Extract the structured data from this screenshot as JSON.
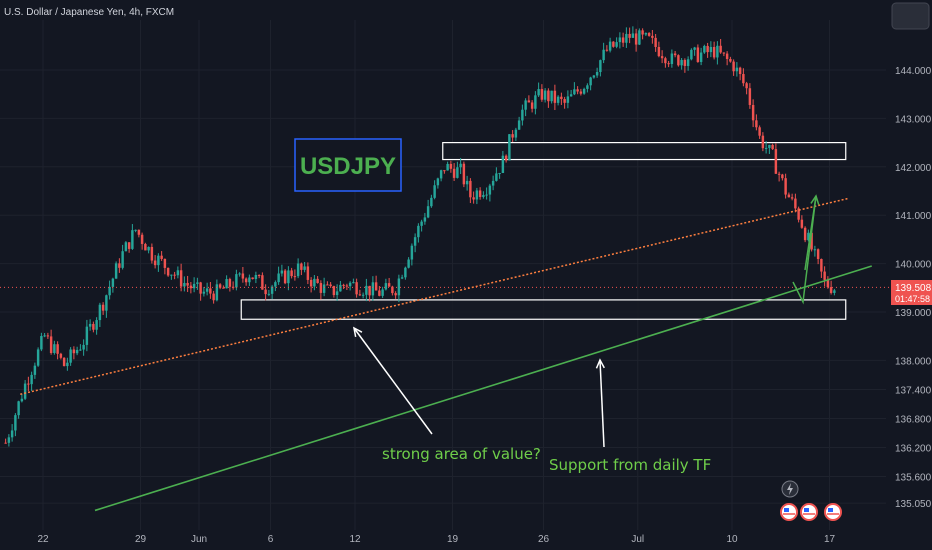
{
  "header": {
    "symbol": "U.S. Dollar / Japanese Yen, 4h, FXCM"
  },
  "colors": {
    "background": "#131722",
    "up": "#26a69a",
    "down": "#ef5350",
    "green_line": "#4caf50",
    "orange_line": "#ff7f3f",
    "text": "#b2b5be",
    "price_tag": "#ef5350"
  },
  "icons": [
    "lightning-icon",
    "us-flag-icon",
    "us-flag-icon",
    "us-flag-icon"
  ],
  "chart_data": {
    "type": "candlestick",
    "title": "USDJPY",
    "xlabel": "",
    "ylabel": "",
    "y_range": [
      134.9,
      145.3
    ],
    "y_ticks": [
      {
        "value": 144.0,
        "label": "144.000"
      },
      {
        "value": 143.0,
        "label": "143.000"
      },
      {
        "value": 142.0,
        "label": "142.000"
      },
      {
        "value": 141.0,
        "label": "141.000"
      },
      {
        "value": 140.0,
        "label": "140.000"
      },
      {
        "value": 139.0,
        "label": "139.000"
      },
      {
        "value": 138.0,
        "label": "138.000"
      },
      {
        "value": 137.4,
        "label": "137.400"
      },
      {
        "value": 136.8,
        "label": "136.800"
      },
      {
        "value": 136.2,
        "label": "136.200"
      },
      {
        "value": 135.6,
        "label": "135.600"
      },
      {
        "value": 135.05,
        "label": "135.050"
      }
    ],
    "x_ticks": [
      "22",
      "29",
      "Jun",
      "6",
      "12",
      "19",
      "26",
      "Jul",
      "10",
      "17"
    ],
    "x_tick_bar_index": [
      12,
      42,
      60,
      82,
      108,
      138,
      166,
      195,
      224,
      254
    ],
    "last_price": {
      "value": 139.508,
      "label": "139.508",
      "countdown": "01:47:58"
    },
    "price_path": [
      [
        0,
        136.3
      ],
      [
        6,
        137.5
      ],
      [
        12,
        138.5
      ],
      [
        18,
        137.9
      ],
      [
        24,
        138.4
      ],
      [
        30,
        139.2
      ],
      [
        36,
        140.2
      ],
      [
        40,
        140.7
      ],
      [
        45,
        140.2
      ],
      [
        50,
        139.9
      ],
      [
        55,
        139.6
      ],
      [
        60,
        139.4
      ],
      [
        65,
        139.4
      ],
      [
        70,
        139.6
      ],
      [
        75,
        139.8
      ],
      [
        80,
        139.5
      ],
      [
        85,
        139.7
      ],
      [
        90,
        139.9
      ],
      [
        95,
        139.6
      ],
      [
        100,
        139.4
      ],
      [
        105,
        139.6
      ],
      [
        110,
        139.5
      ],
      [
        115,
        139.4
      ],
      [
        120,
        139.5
      ],
      [
        125,
        140.4
      ],
      [
        130,
        141.2
      ],
      [
        135,
        142.0
      ],
      [
        140,
        141.9
      ],
      [
        143,
        141.4
      ],
      [
        148,
        141.6
      ],
      [
        153,
        142.1
      ],
      [
        158,
        143.1
      ],
      [
        165,
        143.5
      ],
      [
        172,
        143.3
      ],
      [
        178,
        143.7
      ],
      [
        185,
        144.4
      ],
      [
        192,
        144.7
      ],
      [
        198,
        144.6
      ],
      [
        205,
        144.2
      ],
      [
        212,
        144.3
      ],
      [
        218,
        144.4
      ],
      [
        224,
        144.1
      ],
      [
        228,
        143.6
      ],
      [
        232,
        142.6
      ],
      [
        236,
        142.2
      ],
      [
        240,
        141.5
      ],
      [
        244,
        141.0
      ],
      [
        248,
        140.3
      ],
      [
        252,
        139.6
      ],
      [
        255,
        139.5
      ]
    ],
    "zones": [
      {
        "name": "upper-resistance-zone",
        "bar_from": 135,
        "bar_to": 259,
        "y_top": 142.5,
        "y_bottom": 142.15
      },
      {
        "name": "lower-support-zone",
        "bar_from": 73,
        "bar_to": 259,
        "y_top": 139.25,
        "y_bottom": 138.85
      }
    ],
    "trendlines": [
      {
        "name": "green-support-line",
        "style": "solid",
        "points": [
          [
            28,
            134.9
          ],
          [
            267,
            139.95
          ]
        ]
      },
      {
        "name": "orange-dotted-line",
        "style": "dotted",
        "points": [
          [
            5,
            137.3
          ],
          [
            260,
            141.35
          ]
        ]
      }
    ],
    "annotations": [
      {
        "name": "title-box",
        "text": "USDJPY"
      },
      {
        "name": "strong-area-label",
        "text": "strong area of value?"
      },
      {
        "name": "daily-support-label",
        "text": "Support from daily TF"
      }
    ]
  }
}
